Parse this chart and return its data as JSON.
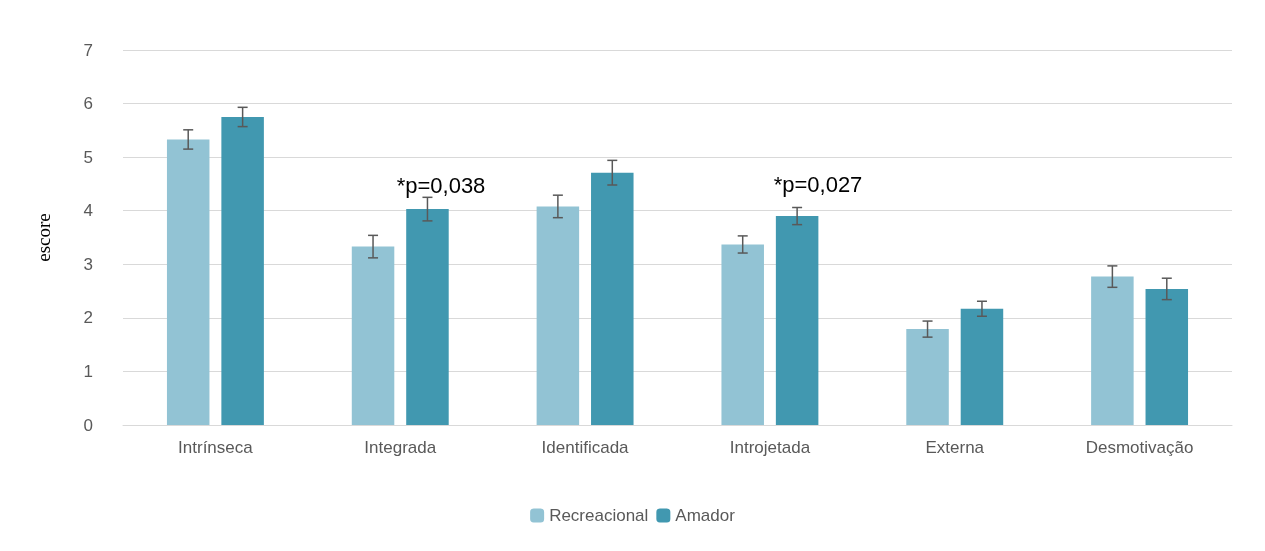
{
  "chart_data": {
    "type": "bar",
    "ylabel": "escore",
    "categories": [
      "Intrínseca",
      "Integrada",
      "Identificada",
      "Introjetada",
      "Externa",
      "Desmotivação"
    ],
    "series": [
      {
        "name": "Recreacional",
        "color": "#92c3d4",
        "values": [
          5.33,
          3.33,
          4.08,
          3.37,
          1.79,
          2.77
        ],
        "errors": [
          0.18,
          0.21,
          0.21,
          0.16,
          0.15,
          0.2
        ]
      },
      {
        "name": "Amador",
        "color": "#4198b0",
        "values": [
          5.75,
          4.03,
          4.71,
          3.9,
          2.17,
          2.54
        ],
        "errors": [
          0.18,
          0.22,
          0.23,
          0.16,
          0.14,
          0.2
        ]
      }
    ],
    "annotations": [
      "*p=0,038",
      "*p=0,027"
    ],
    "ylim": [
      0,
      7
    ],
    "yticks": [
      0,
      1,
      2,
      3,
      4,
      5,
      6,
      7
    ],
    "grid": "y",
    "legend": "bottom"
  }
}
